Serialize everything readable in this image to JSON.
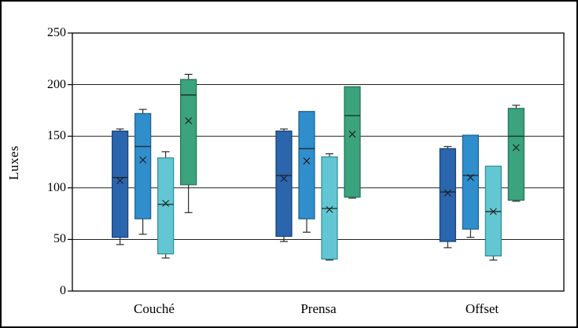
{
  "figure": {
    "background": "#ffffff",
    "border_color": "#000000"
  },
  "chart_data": {
    "type": "boxplot",
    "title": "",
    "ylabel": "Luxes",
    "xlabel": "",
    "ylim": [
      0,
      250
    ],
    "yticks": [
      0,
      50,
      100,
      150,
      200,
      250
    ],
    "grid": true,
    "legend": "none",
    "categories": [
      "Couché",
      "Prensa",
      "Offset"
    ],
    "marker_color": "#1a1a1a",
    "series": [
      {
        "name": "series-1",
        "fill": "#2a65ad",
        "stroke": "#16406f",
        "boxes": [
          {
            "category": "Couché",
            "min": 45,
            "q1": 52,
            "median": 110,
            "q3": 155,
            "max": 157,
            "mean": 107
          },
          {
            "category": "Prensa",
            "min": 48,
            "q1": 53,
            "median": 112,
            "q3": 155,
            "max": 157,
            "mean": 109
          },
          {
            "category": "Offset",
            "min": 42,
            "q1": 48,
            "median": 96,
            "q3": 138,
            "max": 140,
            "mean": 95
          }
        ]
      },
      {
        "name": "series-2",
        "fill": "#2f8ecb",
        "stroke": "#1b5f8e",
        "boxes": [
          {
            "category": "Couché",
            "min": 55,
            "q1": 70,
            "median": 140,
            "q3": 172,
            "max": 176,
            "mean": 127
          },
          {
            "category": "Prensa",
            "min": 57,
            "q1": 70,
            "median": 138,
            "q3": 174,
            "max": 174,
            "mean": 126
          },
          {
            "category": "Offset",
            "min": 52,
            "q1": 60,
            "median": 112,
            "q3": 151,
            "max": 151,
            "mean": 110
          }
        ]
      },
      {
        "name": "series-3",
        "fill": "#63c7d3",
        "stroke": "#2f8a99",
        "boxes": [
          {
            "category": "Couché",
            "min": 32,
            "q1": 36,
            "median": 84,
            "q3": 129,
            "max": 135,
            "mean": 85
          },
          {
            "category": "Prensa",
            "min": 30,
            "q1": 31,
            "median": 80,
            "q3": 130,
            "max": 133,
            "mean": 79
          },
          {
            "category": "Offset",
            "min": 30,
            "q1": 34,
            "median": 77,
            "q3": 121,
            "max": 121,
            "mean": 77
          }
        ]
      },
      {
        "name": "series-4",
        "fill": "#3ba37d",
        "stroke": "#1f7052",
        "boxes": [
          {
            "category": "Couché",
            "min": 76,
            "q1": 103,
            "median": 190,
            "q3": 205,
            "max": 210,
            "mean": 165
          },
          {
            "category": "Prensa",
            "min": 90,
            "q1": 91,
            "median": 170,
            "q3": 198,
            "max": 198,
            "mean": 152
          },
          {
            "category": "Offset",
            "min": 87,
            "q1": 88,
            "median": 150,
            "q3": 177,
            "max": 180,
            "mean": 139
          }
        ]
      }
    ]
  }
}
